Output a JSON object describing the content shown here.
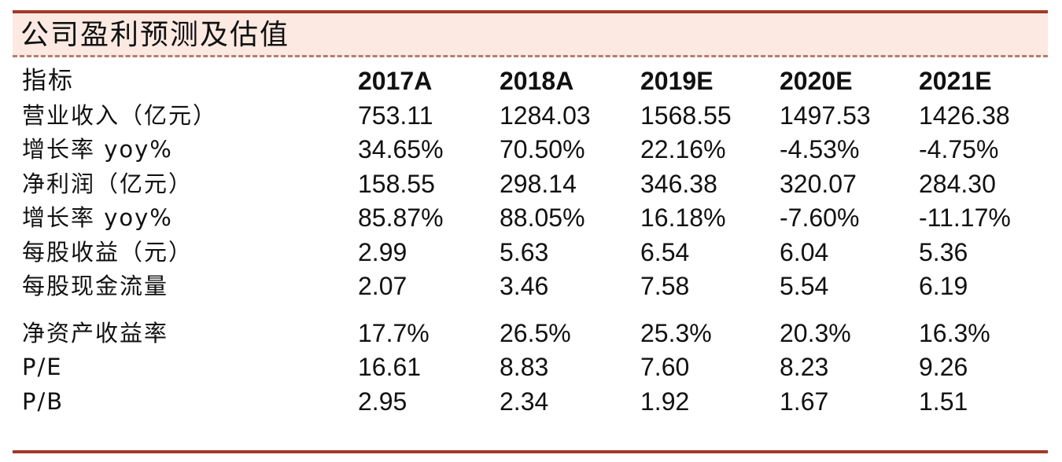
{
  "title": "公司盈利预测及估值",
  "header": {
    "label": "指标",
    "years": [
      "2017A",
      "2018A",
      "2019E",
      "2020E",
      "2021E"
    ]
  },
  "rows": [
    {
      "label": "营业收入（亿元）",
      "values": [
        "753.11",
        "1284.03",
        "1568.55",
        "1497.53",
        "1426.38"
      ]
    },
    {
      "label": "增长率 yoy%",
      "values": [
        "34.65%",
        "70.50%",
        "22.16%",
        "-4.53%",
        "-4.75%"
      ]
    },
    {
      "label": "净利润（亿元）",
      "values": [
        "158.55",
        "298.14",
        "346.38",
        "320.07",
        "284.30"
      ]
    },
    {
      "label": "增长率 yoy%",
      "values": [
        "85.87%",
        "88.05%",
        "16.18%",
        "-7.60%",
        "-11.17%"
      ]
    },
    {
      "label": "每股收益（元）",
      "values": [
        "2.99",
        "5.63",
        "6.54",
        "6.04",
        "5.36"
      ]
    },
    {
      "label": "每股现金流量",
      "values": [
        "2.07",
        "3.46",
        "7.58",
        "5.54",
        "6.19"
      ]
    },
    {
      "label": "净资产收益率",
      "values": [
        "17.7%",
        "26.5%",
        "25.3%",
        "20.3%",
        "16.3%"
      ]
    },
    {
      "label": "P/E",
      "values": [
        "16.61",
        "8.83",
        "7.60",
        "8.23",
        "9.26"
      ]
    },
    {
      "label": "P/B",
      "values": [
        "2.95",
        "2.34",
        "1.92",
        "1.67",
        "1.51"
      ]
    }
  ],
  "colors": {
    "rule": "#a23a26",
    "title_band": "#fbe9e2",
    "dashed_rule": "#b97c6c"
  }
}
